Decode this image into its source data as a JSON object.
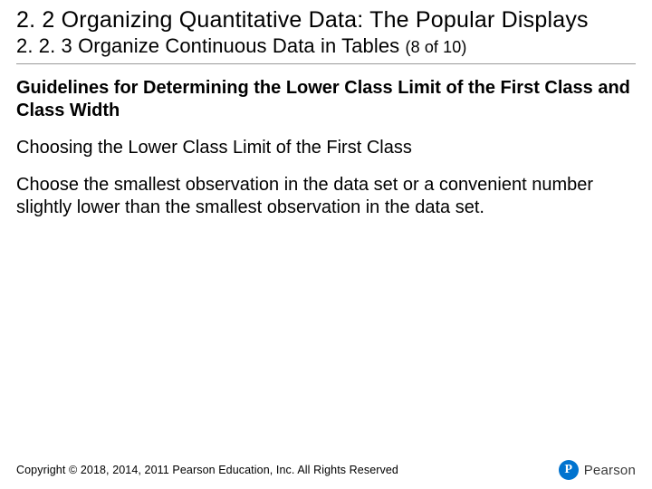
{
  "section": {
    "number": "2. 2",
    "title": "Organizing Quantitative Data: The Popular Displays"
  },
  "subsection": {
    "number": "2. 2. 3",
    "title": "Organize Continuous Data in Tables",
    "page_indicator": "(8 of 10)"
  },
  "content": {
    "heading": "Guidelines for Determining the Lower Class Limit of the First Class and Class Width",
    "subheading": "Choosing the Lower Class Limit of the First Class",
    "body": "Choose the smallest observation in the data set or a convenient number slightly lower than the smallest observation in the data set."
  },
  "footer": {
    "copyright": "Copyright © 2018, 2014, 2011 Pearson Education, Inc. All Rights Reserved"
  },
  "logo": {
    "mark_letter": "P",
    "brand": "Pearson"
  },
  "colors": {
    "brand_blue": "#0073cf",
    "text": "#000000",
    "divider": "#9a9a9a",
    "logo_text": "#3a3a3a"
  }
}
